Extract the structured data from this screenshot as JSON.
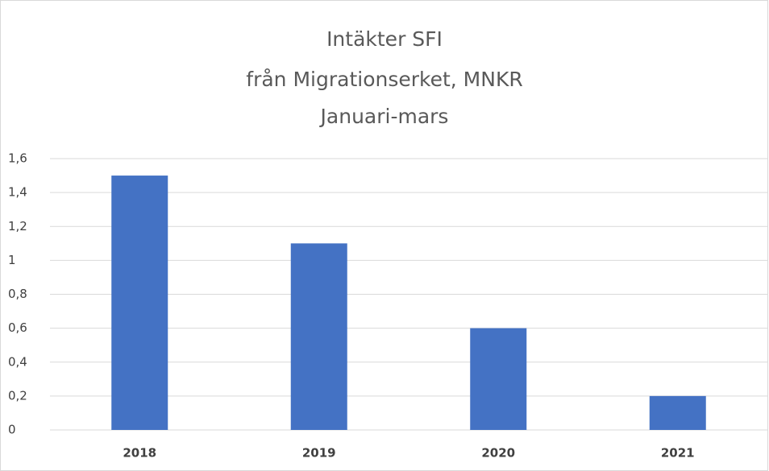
{
  "chart_data": {
    "type": "bar",
    "title": [
      "Intäkter SFI",
      "från Migrationserket, MNKR",
      "Januari-mars"
    ],
    "categories": [
      "2018",
      "2019",
      "2020",
      "2021"
    ],
    "values": [
      1.5,
      1.1,
      0.6,
      0.2
    ],
    "color": "#4472c4",
    "ylim": [
      0,
      1.6
    ],
    "yticks": [
      0,
      {
        "value": 0.2,
        "label": "0,2"
      },
      {
        "value": 0.4,
        "label": "0,4"
      },
      {
        "value": 0.6,
        "label": "0,6"
      },
      {
        "value": 0.8,
        "label": "0,8"
      },
      1,
      {
        "value": 1.2,
        "label": "1,2"
      },
      {
        "value": 1.4,
        "label": "1,4"
      },
      {
        "value": 1.6,
        "label": "1,6"
      }
    ],
    "grid": true
  }
}
